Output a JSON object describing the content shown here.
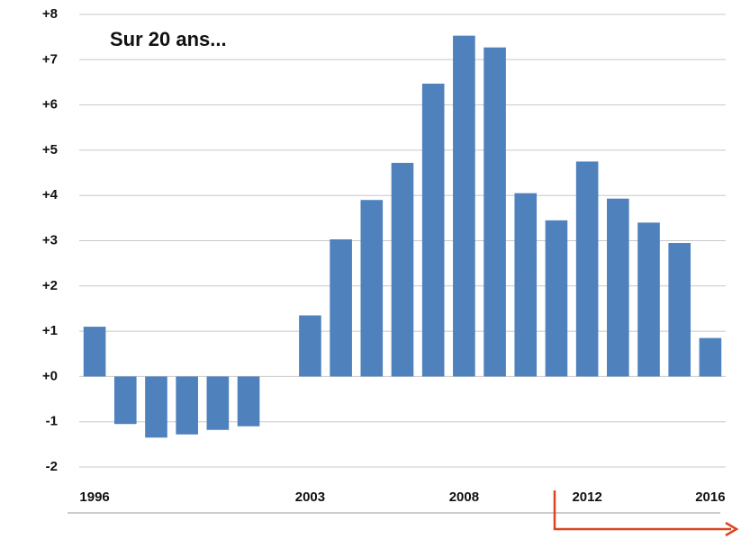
{
  "chart_data": {
    "type": "bar",
    "annotation": "Sur 20 ans...",
    "categories": [
      "1996",
      null,
      null,
      null,
      null,
      null,
      null,
      "2003",
      null,
      null,
      null,
      null,
      "2008",
      null,
      null,
      null,
      "2012",
      null,
      null,
      null,
      "2016"
    ],
    "values": [
      1.1,
      -1.05,
      -1.35,
      -1.28,
      -1.18,
      -1.1,
      0,
      1.35,
      3.03,
      3.9,
      4.72,
      6.47,
      7.53,
      7.27,
      4.05,
      3.45,
      4.75,
      3.93,
      3.4,
      2.95,
      0.85
    ],
    "color": "#4f81bd",
    "ylim": [
      -2,
      8
    ],
    "yticks": [
      -2,
      -1,
      {
        "value": 0,
        "label": "+0"
      },
      {
        "value": 1,
        "label": "+1"
      },
      {
        "value": 2,
        "label": "+2"
      },
      {
        "value": 3,
        "label": "+3"
      },
      {
        "value": 4,
        "label": "+4"
      },
      {
        "value": 5,
        "label": "+5"
      },
      {
        "value": 6,
        "label": "+6"
      },
      {
        "value": 7,
        "label": "+7"
      },
      {
        "value": 8,
        "label": "+8"
      }
    ],
    "grid": true
  }
}
